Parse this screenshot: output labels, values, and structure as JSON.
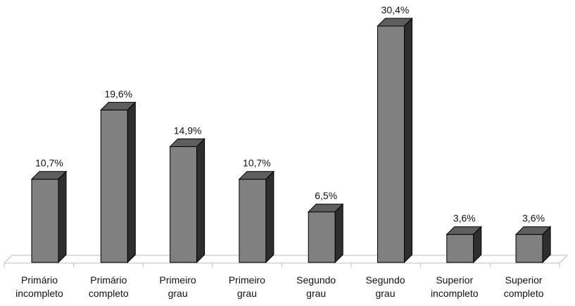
{
  "chart_data": {
    "type": "bar",
    "title": "",
    "xlabel": "",
    "ylabel": "",
    "categories": [
      [
        "Primário",
        "incompleto"
      ],
      [
        "Primário",
        "completo"
      ],
      [
        "Primeiro",
        "grau"
      ],
      [
        "Primeiro",
        "grau"
      ],
      [
        "Segundo",
        "grau"
      ],
      [
        "Segundo",
        "grau"
      ],
      [
        "Superior",
        "incompleto"
      ],
      [
        "Superior",
        "completo"
      ]
    ],
    "values": [
      10.7,
      19.6,
      14.9,
      10.7,
      6.5,
      30.4,
      3.6,
      3.6
    ],
    "value_labels": [
      "10,7%",
      "19,6%",
      "14,9%",
      "10,7%",
      "6,5%",
      "30,4%",
      "3,6%",
      "3,6%"
    ],
    "ylim": [
      0,
      30.4
    ],
    "grid": false,
    "legend": "none",
    "style": "3d-column",
    "colors": {
      "bar_front": "#808080",
      "bar_top": "#5e5e5e",
      "bar_side": "#2e2e2e",
      "outline": "#000000",
      "floor": "#bdbdbd"
    }
  }
}
